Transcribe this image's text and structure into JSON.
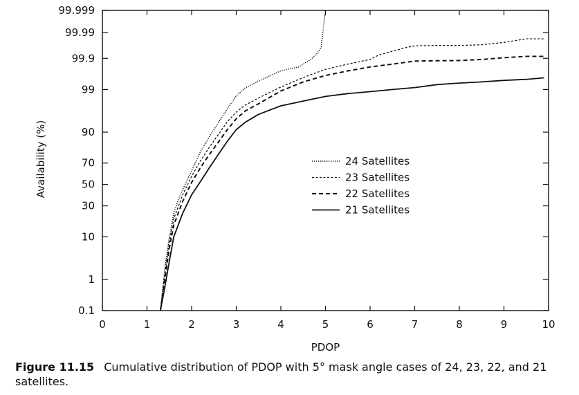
{
  "chart_data": {
    "type": "line",
    "xlabel": "PDOP",
    "ylabel": "Availability (%)",
    "xlim": [
      0,
      10
    ],
    "x_ticks": [
      "0",
      "1",
      "2",
      "3",
      "4",
      "5",
      "6",
      "7",
      "8",
      "9",
      "10"
    ],
    "y_scale": "cumulative-probability (normal)",
    "y_ticks": [
      "0.1",
      "1",
      "10",
      "30",
      "50",
      "70",
      "90",
      "99",
      "99.9",
      "99.99",
      "99.999"
    ],
    "grid": false,
    "legend_position": "center",
    "series": [
      {
        "name": "24 Satellites",
        "style": "dotted",
        "x": [
          1.3,
          1.4,
          1.5,
          1.6,
          1.7,
          1.8,
          2.0,
          2.2,
          2.4,
          2.6,
          2.8,
          3.0,
          3.2,
          3.5,
          3.8,
          4.0,
          4.2,
          4.4,
          4.5,
          4.6,
          4.7,
          4.8,
          4.9,
          5.0
        ],
        "y": [
          0.1,
          2,
          10,
          24,
          35,
          45,
          63,
          79,
          88,
          93.5,
          96.8,
          98.5,
          99.1,
          99.43,
          99.64,
          99.73,
          99.77,
          99.8,
          99.84,
          99.87,
          99.9,
          99.93,
          99.96,
          99.999
        ]
      },
      {
        "name": "23 Satellites",
        "style": "fine-dashed",
        "x": [
          1.3,
          1.4,
          1.5,
          1.6,
          1.8,
          2.0,
          2.2,
          2.4,
          2.6,
          2.8,
          3.0,
          3.2,
          3.5,
          4.0,
          4.5,
          5.0,
          5.5,
          6.0,
          6.2,
          6.5,
          6.8,
          7.0,
          7.5,
          8.0,
          8.5,
          9.0,
          9.5,
          9.9
        ],
        "y": [
          0.1,
          1.5,
          8,
          20,
          40,
          58,
          72,
          82,
          89,
          93.8,
          96.2,
          97.4,
          98.3,
          99.15,
          99.56,
          99.76,
          99.84,
          99.89,
          99.925,
          99.945,
          99.96,
          99.966,
          99.967,
          99.967,
          99.969,
          99.975,
          99.982,
          99.982
        ]
      },
      {
        "name": "22 Satellites",
        "style": "dashed",
        "x": [
          1.3,
          1.4,
          1.5,
          1.6,
          1.8,
          2.0,
          2.2,
          2.4,
          2.6,
          2.8,
          3.0,
          3.2,
          3.5,
          4.0,
          4.5,
          5.0,
          5.5,
          6.0,
          6.5,
          7.0,
          7.5,
          8.0,
          8.5,
          9.0,
          9.5,
          9.9
        ],
        "y": [
          0.1,
          1,
          6,
          16,
          34,
          52,
          66,
          77,
          85,
          91,
          94.6,
          96.4,
          97.6,
          98.9,
          99.4,
          99.62,
          99.73,
          99.8,
          99.84,
          99.875,
          99.878,
          99.88,
          99.89,
          99.905,
          99.915,
          99.915
        ]
      },
      {
        "name": "21 Satellites",
        "style": "solid",
        "x": [
          1.3,
          1.4,
          1.5,
          1.6,
          1.8,
          2.0,
          2.2,
          2.4,
          2.6,
          2.8,
          3.0,
          3.2,
          3.5,
          4.0,
          4.5,
          5.0,
          5.5,
          6.0,
          6.5,
          7.0,
          7.5,
          8.0,
          8.5,
          9.0,
          9.5,
          9.9
        ],
        "y": [
          0.1,
          0.6,
          3,
          10,
          24,
          40,
          53,
          66,
          77,
          85.5,
          91,
          93.6,
          95.7,
          97.3,
          97.95,
          98.45,
          98.7,
          98.85,
          99.0,
          99.12,
          99.28,
          99.35,
          99.4,
          99.46,
          99.5,
          99.55
        ]
      }
    ]
  },
  "caption": {
    "figure_number": "Figure 11.15",
    "text": "Cumulative distribution of PDOP with 5° mask angle cases of 24, 23, 22, and 21 satellites."
  }
}
